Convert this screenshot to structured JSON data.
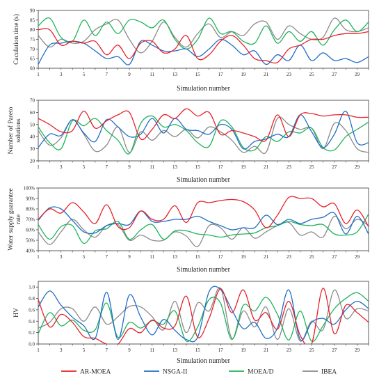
{
  "series_styles": [
    {
      "name": "AR-MOEA",
      "color": "#e8202a"
    },
    {
      "name": "NSGA-II",
      "color": "#1f6ec8"
    },
    {
      "name": "MOEA/D",
      "color": "#1fb35b"
    },
    {
      "name": "IBEA",
      "color": "#8a8a8a"
    }
  ],
  "legend": [
    "AR-MOEA",
    "NSGA-II",
    "MOEA/D",
    "IBEA"
  ],
  "chart_data": [
    {
      "type": "line",
      "xlabel": "Simulation number",
      "ylabel": "Caculation time (s)",
      "x": [
        1,
        2,
        3,
        4,
        5,
        6,
        7,
        8,
        9,
        10,
        11,
        12,
        13,
        14,
        15,
        16,
        17,
        18,
        19,
        20,
        21,
        22,
        23,
        24,
        25,
        26,
        27,
        28,
        29,
        30
      ],
      "xticks": [
        "1",
        "3",
        "5",
        "7",
        "9",
        "11",
        "13",
        "15",
        "17",
        "19",
        "21",
        "23",
        "25",
        "27",
        "29"
      ],
      "yticks": [
        "60",
        "65",
        "70",
        "75",
        "80",
        "85",
        "90"
      ],
      "ylim": [
        60,
        90
      ],
      "grid": false,
      "series": [
        {
          "name": "AR-MOEA",
          "values": [
            80,
            80,
            72,
            74,
            73,
            74,
            67,
            72,
            65,
            73,
            74,
            68,
            70,
            77,
            65,
            67,
            74,
            77,
            72,
            65,
            64,
            63,
            70,
            72,
            75,
            75,
            77,
            78,
            78,
            79
          ]
        },
        {
          "name": "NSGA-II",
          "values": [
            62,
            72,
            73,
            74,
            73,
            69,
            65,
            66,
            62,
            74,
            72,
            69,
            69,
            70,
            66,
            70,
            75,
            72,
            67,
            69,
            62,
            67,
            64,
            72,
            64,
            68,
            64,
            65,
            63,
            66
          ]
        },
        {
          "name": "MOEA/D",
          "values": [
            82,
            86,
            76,
            74,
            85,
            77,
            84,
            78,
            85,
            84,
            81,
            85,
            75,
            70,
            75,
            86,
            78,
            79,
            74,
            73,
            82,
            73,
            79,
            74,
            79,
            72,
            80,
            85,
            79,
            84
          ]
        },
        {
          "name": "IBEA",
          "values": [
            77,
            71,
            75,
            73,
            74,
            80,
            83,
            85,
            75,
            68,
            74,
            84,
            76,
            71,
            78,
            83,
            76,
            79,
            77,
            83,
            84,
            75,
            82,
            78,
            75,
            76,
            86,
            80,
            79,
            81
          ]
        }
      ]
    },
    {
      "type": "line",
      "xlabel": "Simulation number",
      "ylabel": "Number of Pareto solutions",
      "x": [
        1,
        2,
        3,
        4,
        5,
        6,
        7,
        8,
        9,
        10,
        11,
        12,
        13,
        14,
        15,
        16,
        17,
        18,
        19,
        20,
        21,
        22,
        23,
        24,
        25,
        26,
        27,
        28,
        29,
        30
      ],
      "xticks": [
        "1",
        "3",
        "5",
        "7",
        "9",
        "11",
        "13",
        "15",
        "17",
        "19",
        "21",
        "23",
        "25",
        "27",
        "29"
      ],
      "yticks": [
        "20",
        "30",
        "40",
        "50",
        "60",
        "70"
      ],
      "ylim": [
        20,
        70
      ],
      "grid": false,
      "series": [
        {
          "name": "AR-MOEA",
          "values": [
            55,
            50,
            44,
            45,
            61,
            47,
            53,
            58,
            60,
            38,
            46,
            58,
            55,
            63,
            57,
            60,
            42,
            45,
            43,
            40,
            37,
            58,
            40,
            58,
            59,
            57,
            58,
            58,
            56,
            56
          ]
        },
        {
          "name": "NSGA-II",
          "values": [
            31,
            42,
            41,
            54,
            43,
            36,
            54,
            48,
            40,
            42,
            55,
            43,
            55,
            46,
            45,
            42,
            50,
            46,
            30,
            36,
            38,
            42,
            40,
            58,
            44,
            31,
            42,
            61,
            35,
            35
          ]
        },
        {
          "name": "MOEA/D",
          "values": [
            48,
            35,
            30,
            53,
            49,
            55,
            45,
            37,
            26,
            51,
            57,
            48,
            50,
            45,
            35,
            32,
            53,
            48,
            31,
            29,
            40,
            36,
            44,
            43,
            47,
            31,
            29,
            40,
            46,
            52
          ]
        },
        {
          "name": "IBEA",
          "values": [
            45,
            33,
            39,
            54,
            42,
            28,
            33,
            48,
            27,
            44,
            37,
            45,
            40,
            46,
            39,
            48,
            44,
            37,
            27,
            32,
            27,
            55,
            50,
            46,
            47,
            30,
            51,
            45,
            30,
            27
          ]
        }
      ]
    },
    {
      "type": "line",
      "xlabel": "Simulation number",
      "ylabel": "Water supply guarantee rate",
      "x": [
        1,
        2,
        3,
        4,
        5,
        6,
        7,
        8,
        9,
        10,
        11,
        12,
        13,
        14,
        15,
        16,
        17,
        18,
        19,
        20,
        21,
        22,
        23,
        24,
        25,
        26,
        27,
        28,
        29,
        30
      ],
      "xticks": [
        "1",
        "3",
        "5",
        "7",
        "9",
        "11",
        "13",
        "15",
        "17",
        "19",
        "21",
        "23",
        "25",
        "27",
        "29"
      ],
      "yticks": [
        "40%",
        "50%",
        "60%",
        "70%",
        "80%",
        "90%",
        "100%"
      ],
      "ylim": [
        40,
        100
      ],
      "grid": false,
      "series": [
        {
          "name": "AR-MOEA",
          "values": [
            70,
            80,
            76,
            86,
            77,
            66,
            84,
            63,
            62,
            78,
            70,
            70,
            83,
            67,
            86,
            86,
            88,
            89,
            87,
            79,
            62,
            74,
            91,
            90,
            90,
            82,
            85,
            66,
            79,
            63
          ]
        },
        {
          "name": "NSGA-II",
          "values": [
            69,
            81,
            80,
            69,
            58,
            57,
            64,
            66,
            65,
            78,
            68,
            68,
            70,
            70,
            73,
            68,
            64,
            60,
            62,
            62,
            74,
            65,
            70,
            66,
            70,
            72,
            76,
            56,
            73,
            56
          ]
        },
        {
          "name": "MOEA/D",
          "values": [
            65,
            51,
            63,
            64,
            47,
            59,
            61,
            68,
            51,
            60,
            65,
            51,
            59,
            59,
            56,
            55,
            53,
            55,
            56,
            57,
            62,
            64,
            68,
            65,
            64,
            65,
            56,
            55,
            58,
            75
          ]
        },
        {
          "name": "IBEA",
          "values": [
            58,
            46,
            58,
            70,
            60,
            53,
            64,
            65,
            50,
            55,
            50,
            50,
            58,
            54,
            44,
            64,
            62,
            51,
            62,
            52,
            58,
            64,
            67,
            55,
            58,
            53,
            73,
            61,
            70,
            64
          ]
        }
      ]
    },
    {
      "type": "line",
      "xlabel": "Simulation number",
      "ylabel": "HV",
      "x": [
        1,
        2,
        3,
        4,
        5,
        6,
        7,
        8,
        9,
        10,
        11,
        12,
        13,
        14,
        15,
        16,
        17,
        18,
        19,
        20,
        21,
        22,
        23,
        24,
        25,
        26,
        27,
        28,
        29,
        30
      ],
      "xticks": [
        "1",
        "3",
        "5",
        "7",
        "9",
        "11",
        "13",
        "15",
        "17",
        "19",
        "21",
        "23",
        "25",
        "27",
        "29"
      ],
      "yticks": [
        "0.0",
        "0.2",
        "0.4",
        "0.6",
        "0.8",
        "1.0"
      ],
      "ylim": [
        0,
        1.1
      ],
      "grid": false,
      "series": [
        {
          "name": "AR-MOEA",
          "values": [
            0.78,
            0.3,
            0.52,
            0.38,
            0.13,
            0.1,
            0.0,
            0.0,
            0.27,
            0.2,
            0.42,
            0.28,
            0.32,
            0.84,
            0.12,
            0.45,
            0.97,
            0.55,
            0.95,
            0.42,
            0.55,
            0.26,
            0.75,
            0.15,
            0.0,
            0.98,
            0.18,
            0.68,
            0.55,
            0.38
          ]
        },
        {
          "name": "NSGA-II",
          "values": [
            0.65,
            0.93,
            0.68,
            0.47,
            0.32,
            0.1,
            0.91,
            0.08,
            0.86,
            0.47,
            0.16,
            0.43,
            0.24,
            0.08,
            0.12,
            0.92,
            0.96,
            0.6,
            0.27,
            0.38,
            0.1,
            0.28,
            0.95,
            0.08,
            0.38,
            0.45,
            0.35,
            0.6,
            0.75,
            0.62
          ]
        },
        {
          "name": "MOEA/D",
          "values": [
            0.18,
            0.55,
            0.32,
            0.42,
            0.24,
            0.25,
            0.72,
            0.12,
            0.38,
            0.28,
            0.41,
            0.35,
            0.58,
            0.05,
            0.3,
            0.78,
            0.72,
            0.08,
            0.68,
            0.58,
            0.82,
            0.52,
            0.07,
            0.58,
            0.05,
            0.32,
            0.62,
            0.8,
            0.9,
            0.75
          ]
        },
        {
          "name": "IBEA",
          "values": [
            0.28,
            0.38,
            0.62,
            0.62,
            0.4,
            0.65,
            0.35,
            0.48,
            0.66,
            0.65,
            0.48,
            0.25,
            0.75,
            0.2,
            0.72,
            0.58,
            0.98,
            0.1,
            0.58,
            0.3,
            0.65,
            0.08,
            0.62,
            0.05,
            0.4,
            0.25,
            0.95,
            0.45,
            0.62,
            0.58
          ]
        }
      ]
    }
  ]
}
